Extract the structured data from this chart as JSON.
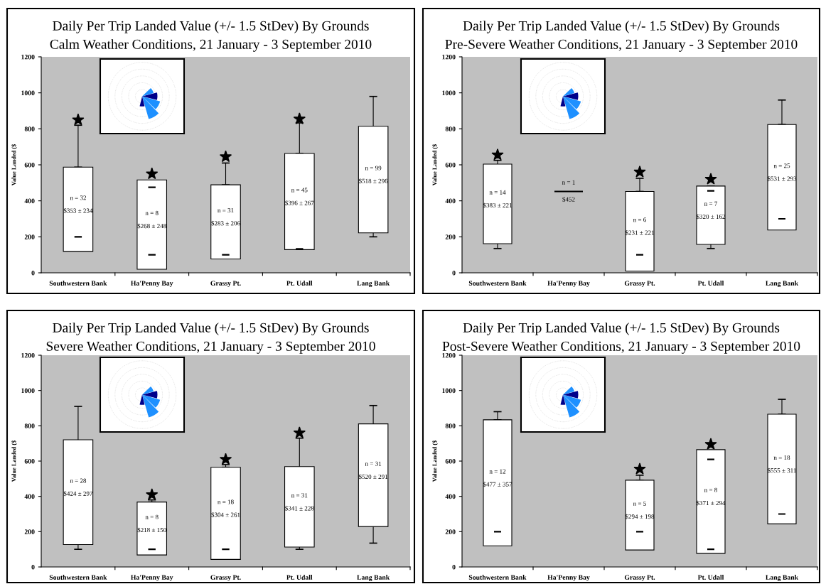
{
  "chart_data": [
    {
      "type": "bar",
      "title": "Daily Per Trip Landed Value (+/- 1.5 StDev) By Grounds",
      "subtitle": "Calm Weather Conditions, 21 January - 3 September 2010",
      "ylabel": "Value Landed ($",
      "categories": [
        "Southwestern Bank",
        "Ha'Penny Bay",
        "Grassy Pt.",
        "Pt. Udall",
        "Lang Bank"
      ],
      "ylim": [
        0,
        1200
      ],
      "yticks": [
        0,
        200,
        400,
        600,
        800,
        1000,
        1200
      ],
      "series": [
        {
          "color": "#ffffff",
          "base": [
            119,
            20,
            77,
            129,
            222
          ],
          "values": [
            468,
            496,
            412,
            534,
            592
          ],
          "errors": [
            [
              587,
              820
            ],
            null,
            [
              489,
              610
            ],
            [
              663,
              833
            ],
            [
              200,
              980
            ]
          ],
          "value_labels": [
            "n = 32\n\n$353 ± 234",
            "n = 8\n\n$268 ± 248",
            "n = 31\n\n$283 ± 206",
            "n = 45\n\n$396 ± 267",
            "n = 99\n\n$518 ± 296"
          ]
        },
        {
          "type": "scatter",
          "marker": "star",
          "color": "#000000",
          "values": [
            850,
            550,
            645,
            855,
            null
          ]
        },
        {
          "color": "#000000",
          "base": [
            200,
            475,
            100,
            133,
            null
          ],
          "values": [
            0,
            0,
            0,
            0,
            null
          ]
        },
        {
          "color": "#000000",
          "base": [
            null,
            100,
            null,
            null,
            null
          ],
          "values": [
            null,
            0,
            null,
            null,
            null
          ]
        }
      ]
    },
    {
      "type": "bar",
      "title": "Daily Per Trip Landed Value (+/- 1.5 StDev) By Grounds",
      "subtitle": "Pre-Severe Weather Conditions, 21 January - 3 September 2010",
      "ylabel": "Value Landed ($",
      "categories": [
        "Southwestern Bank",
        "Ha'Penny Bay",
        "Grassy Pt.",
        "Pt. Udall",
        "Lang Bank"
      ],
      "ylim": [
        0,
        1200
      ],
      "yticks": [
        0,
        200,
        400,
        600,
        800,
        1000,
        1200
      ],
      "series": [
        {
          "colors": [
            "#ffffff",
            "#000000",
            "#ffffff",
            "#ffffff",
            "#ffffff"
          ],
          "base": [
            162,
            452,
            10,
            158,
            238
          ],
          "values": [
            442,
            0,
            442,
            324,
            586
          ],
          "errors": [
            [
              135,
              625
            ],
            null,
            [
              452,
              525
            ],
            [
              135,
              482
            ],
            [
              824,
              960
            ]
          ],
          "value_labels": [
            "n = 14\n\n$383 ± 221",
            "n = 1\n\n$452",
            "n = 6\n\n$231 ± 221",
            "n = 7\n\n$320 ± 162",
            "n = 25\n\n$531 ± 293"
          ]
        },
        {
          "type": "scatter",
          "marker": "star",
          "color": "#000000",
          "values": [
            655,
            null,
            560,
            520,
            null
          ]
        },
        {
          "color": "#000000",
          "base": [
            null,
            null,
            100,
            455,
            300
          ],
          "values": [
            null,
            null,
            0,
            0,
            0
          ]
        }
      ]
    },
    {
      "type": "bar",
      "title": "Daily Per Trip Landed Value (+/- 1.5 StDev) By Grounds",
      "subtitle": "Severe Weather Conditions, 21 January - 3 September 2010",
      "ylabel": "Value Landed ($",
      "categories": [
        "Southwestern Bank",
        "Ha'Penny Bay",
        "Grassy Pt.",
        "Pt. Udall",
        "Lang Bank"
      ],
      "ylim": [
        0,
        1200
      ],
      "yticks": [
        0,
        200,
        400,
        600,
        800,
        1000,
        1200
      ],
      "series": [
        {
          "color": "#ffffff",
          "base": [
            127,
            68,
            43,
            113,
            229
          ],
          "values": [
            594,
            300,
            522,
            456,
            582
          ],
          "errors": [
            [
              100,
              910
            ],
            [
              368,
              380
            ],
            [
              565,
              580
            ],
            [
              100,
              730
            ],
            [
              135,
              915
            ]
          ],
          "value_labels": [
            "n = 28\n\n$424 ± 297",
            "n = 8\n\n$218 ± 150",
            "n = 18\n\n$304 ± 261",
            "n = 31\n\n$341 ± 228",
            "n = 31\n\n$520 ± 291"
          ]
        },
        {
          "type": "scatter",
          "marker": "star",
          "color": "#000000",
          "values": [
            null,
            410,
            610,
            760,
            null
          ]
        },
        {
          "color": "#000000",
          "base": [
            null,
            100,
            100,
            null,
            null
          ],
          "values": [
            null,
            0,
            0,
            null,
            null
          ]
        }
      ]
    },
    {
      "type": "bar",
      "title": "Daily Per Trip Landed Value (+/- 1.5 StDev) By Grounds",
      "subtitle": "Post-Severe Weather Conditions, 21 January - 3 September 2010",
      "ylabel": "Value Landed ($",
      "categories": [
        "Southwestern Bank",
        "Ha'Penny Bay",
        "Grassy Pt.",
        "Pt. Udall",
        "Lang Bank"
      ],
      "ylim": [
        0,
        1200
      ],
      "yticks": [
        0,
        200,
        400,
        600,
        800,
        1000,
        1200
      ],
      "series": [
        {
          "color": "#ffffff",
          "base": [
            120,
            null,
            96,
            77,
            244
          ],
          "values": [
            714,
            null,
            396,
            588,
            622
          ],
          "errors": [
            [
              834,
              880
            ],
            null,
            [
              492,
              520
            ],
            null,
            [
              866,
              950
            ]
          ],
          "value_labels": [
            "n = 12\n\n$477 ± 357",
            null,
            "n = 5\n\n$294 ± 198",
            "n = 8\n\n$371 ± 294",
            "n = 18\n\n$555 ± 311"
          ]
        },
        {
          "type": "scatter",
          "marker": "star",
          "color": "#000000",
          "values": [
            null,
            null,
            555,
            695,
            null
          ]
        },
        {
          "color": "#000000",
          "base": [
            200,
            null,
            200,
            610,
            300
          ],
          "values": [
            0,
            null,
            0,
            0,
            0
          ]
        },
        {
          "color": "#000000",
          "base": [
            null,
            null,
            null,
            100,
            null
          ],
          "values": [
            null,
            null,
            null,
            0,
            null
          ]
        }
      ]
    }
  ]
}
